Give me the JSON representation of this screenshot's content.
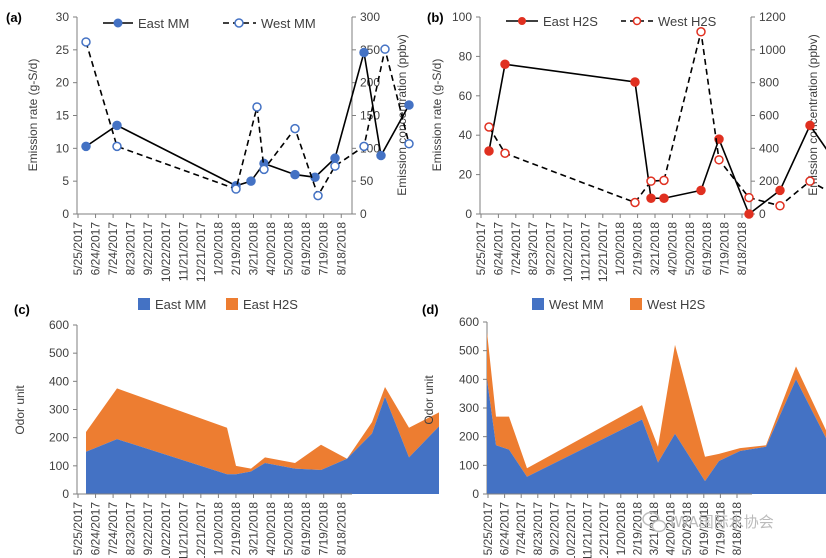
{
  "colors": {
    "blue": "#4472c4",
    "orange": "#ed7d31",
    "red": "#e03020",
    "black": "#000000",
    "axis": "#7f7f7f",
    "text": "#404040"
  },
  "watermark": {
    "text": "IWA国际水协会",
    "icon": "wechat-icon"
  },
  "chart_data": [
    {
      "id": "a",
      "panel_label": "(a)",
      "type": "line",
      "dates": [
        "5/25/2017",
        "6/24/2017",
        "7/24/2017",
        "8/23/2017",
        "9/22/2017",
        "10/22/2017",
        "11/21/2017",
        "12/21/2017",
        "1/20/2018",
        "2/19/2018",
        "3/21/2018",
        "4/20/2018",
        "5/20/2018",
        "6/19/2018",
        "7/19/2018",
        "8/18/2018"
      ],
      "ylabel": "Emission rate (g-S/d)",
      "y2label": "Emission concentration (ppbv)",
      "ylim": [
        0,
        30
      ],
      "yticks": [
        0,
        5,
        10,
        15,
        20,
        25,
        30
      ],
      "y2lim": [
        0,
        300
      ],
      "y2ticks": [
        0,
        50,
        100,
        150,
        200,
        250,
        300
      ],
      "legend": [
        "East MM",
        "West MM"
      ],
      "series": [
        {
          "name": "East MM",
          "axis": "left",
          "style": "solid",
          "marker_fill": "#4472c4",
          "marker_stroke": "#4472c4",
          "x": [
            9,
            40,
            159,
            174,
            187,
            218,
            238,
            258,
            287,
            304,
            332
          ],
          "y": [
            10.3,
            13.5,
            4.3,
            5.0,
            7.7,
            6.0,
            5.6,
            8.5,
            24.6,
            8.9,
            16.6
          ]
        },
        {
          "name": "West MM",
          "axis": "right",
          "style": "dashed",
          "marker_fill": "#ffffff",
          "marker_stroke": "#4472c4",
          "x": [
            9,
            40,
            159,
            180,
            187,
            218,
            241,
            258,
            287,
            308,
            332
          ],
          "y": [
            262,
            103,
            38,
            163,
            68,
            130,
            28,
            73,
            103,
            251,
            107
          ]
        }
      ]
    },
    {
      "id": "b",
      "panel_label": "(b)",
      "type": "line",
      "dates": [
        "5/25/2017",
        "6/24/2017",
        "7/24/2017",
        "8/23/2017",
        "9/22/2017",
        "10/22/2017",
        "11/21/2017",
        "12/21/2017",
        "1/20/2018",
        "2/19/2018",
        "3/21/2018",
        "4/20/2018",
        "5/20/2018",
        "6/19/2018",
        "7/19/2018",
        "8/18/2018"
      ],
      "ylabel": "Emission rate (g-S/d)",
      "y2label": "Emission concentration (ppbv)",
      "ylim": [
        0,
        100
      ],
      "yticks": [
        0,
        20,
        40,
        60,
        80,
        100
      ],
      "y2lim": [
        0,
        1200
      ],
      "y2ticks": [
        0,
        200,
        400,
        600,
        800,
        1000,
        1200
      ],
      "legend": [
        "East H2S",
        "West H2S"
      ],
      "series": [
        {
          "name": "East H2S",
          "axis": "left",
          "style": "solid",
          "marker_fill": "#e03020",
          "marker_stroke": "#e03020",
          "x": [
            9,
            25,
            155,
            171,
            184,
            221,
            239,
            269,
            300,
            330,
            360
          ],
          "y": [
            32,
            76,
            67,
            8,
            8,
            12,
            38,
            0,
            12,
            45,
            23
          ]
        },
        {
          "name": "West H2S",
          "axis": "right",
          "style": "dashed",
          "marker_fill": "#ffffff",
          "marker_stroke": "#e03020",
          "x": [
            9,
            25,
            155,
            171,
            184,
            221,
            239,
            269,
            300,
            330,
            360
          ],
          "y": [
            530,
            370,
            70,
            200,
            205,
            1110,
            330,
            100,
            50,
            200,
            100
          ]
        }
      ]
    },
    {
      "id": "c",
      "panel_label": "(c)",
      "type": "area",
      "stacked": true,
      "dates": [
        "5/25/2017",
        "6/24/2017",
        "7/24/2017",
        "8/23/2017",
        "9/22/2017",
        "10/22/2017",
        "11/21/2017",
        "12/21/2017",
        "1/20/2018",
        "2/19/2018",
        "3/21/2018",
        "4/20/2018",
        "5/20/2018",
        "6/19/2018",
        "7/19/2018",
        "8/18/2018"
      ],
      "ylabel": "Odor unit",
      "ylim": [
        0,
        600
      ],
      "yticks": [
        0,
        100,
        200,
        300,
        400,
        500,
        600
      ],
      "legend": [
        "East MM",
        "East H2S"
      ],
      "x": [
        9,
        40,
        150,
        159,
        174,
        188,
        218,
        244,
        270,
        295,
        308,
        332,
        362
      ],
      "series": [
        {
          "name": "East MM",
          "color": "#4472c4",
          "values": [
            150,
            195,
            70,
            70,
            80,
            110,
            90,
            85,
            125,
            215,
            345,
            130,
            240
          ]
        },
        {
          "name": "East H2S",
          "color": "#ed7d31",
          "values": [
            70,
            180,
            165,
            30,
            10,
            20,
            20,
            90,
            0,
            40,
            35,
            105,
            50
          ]
        }
      ]
    },
    {
      "id": "d",
      "panel_label": "(d)",
      "type": "area",
      "stacked": true,
      "dates": [
        "5/25/2017",
        "6/24/2017",
        "7/24/2017",
        "8/23/2017",
        "9/22/2017",
        "10/22/2017",
        "11/21/2017",
        "12/21/2017",
        "1/20/2018",
        "2/19/2018",
        "3/21/2018",
        "4/20/2018",
        "5/20/2018",
        "6/19/2018",
        "7/19/2018",
        "8/18/2018"
      ],
      "ylabel": "Odor unit",
      "ylim": [
        0,
        600
      ],
      "yticks": [
        0,
        100,
        200,
        300,
        400,
        500,
        600
      ],
      "legend": [
        "West MM",
        "West H2S"
      ],
      "x": [
        0,
        9,
        22,
        40,
        155,
        171,
        188,
        218,
        232,
        253,
        279,
        309,
        342
      ],
      "series": [
        {
          "name": "West MM",
          "color": "#4472c4",
          "values": [
            400,
            170,
            155,
            60,
            260,
            110,
            210,
            45,
            115,
            150,
            165,
            400,
            175
          ]
        },
        {
          "name": "West H2S",
          "color": "#ed7d31",
          "values": [
            165,
            100,
            115,
            30,
            50,
            55,
            310,
            85,
            25,
            10,
            5,
            45,
            25
          ]
        }
      ]
    }
  ]
}
